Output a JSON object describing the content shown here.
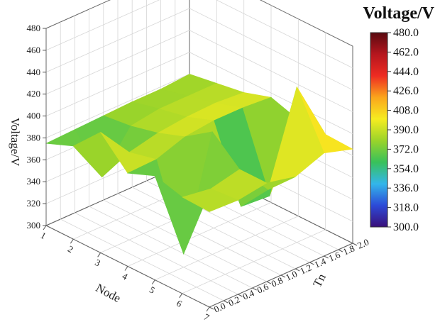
{
  "chart_data": {
    "type": "surface3d",
    "title": "",
    "colorbar_title": "Voltage/V",
    "z_axis_label": "Voltage/V",
    "x_axis_label": "Node",
    "y_axis_label": "Tn",
    "z_ticks": [
      "300",
      "320",
      "340",
      "360",
      "380",
      "400",
      "420",
      "440",
      "460",
      "480"
    ],
    "x_ticks": [
      "1",
      "2",
      "3",
      "4",
      "5",
      "6",
      "7"
    ],
    "y_ticks": [
      "0.0",
      "0.2",
      "0.4",
      "0.6",
      "0.8",
      "1.0",
      "1.2",
      "1.4",
      "1.6",
      "1.8",
      "2.0"
    ],
    "zlim": [
      300,
      480
    ],
    "xlim": [
      1,
      7
    ],
    "ylim": [
      0,
      2
    ],
    "colorbar_ticks": [
      "480.0",
      "462.0",
      "444.0",
      "426.0",
      "408.0",
      "390.0",
      "372.0",
      "354.0",
      "336.0",
      "318.0",
      "300.0"
    ],
    "colorscale": [
      "#3a0f7a",
      "#2c4ad8",
      "#33b6ea",
      "#38c15a",
      "#9ad42a",
      "#f6ec20",
      "#fba51c",
      "#ee2b22",
      "#b5161e",
      "#5a0a10"
    ],
    "grid": true,
    "y_values": [
      0.0,
      0.4,
      0.8,
      1.2,
      1.6,
      2.0
    ],
    "surface": [
      {
        "node": 1,
        "values": [
          375,
          376,
          377,
          378,
          378,
          380
        ]
      },
      {
        "node": 2,
        "values": [
          385,
          345,
          380,
          384,
          384,
          384
        ]
      },
      {
        "node": 3,
        "values": [
          410,
          380,
          386,
          389,
          390,
          388
        ]
      },
      {
        "node": 4,
        "values": [
          385,
          386,
          395,
          398,
          398,
          396
        ]
      },
      {
        "node": 5,
        "values": [
          395,
          312,
          412,
          332,
          330,
          388
        ]
      },
      {
        "node": 6,
        "values": [
          388,
          384,
          390,
          360,
          442,
          387
        ]
      },
      {
        "node": 7,
        "values": [
          387,
          386,
          390,
          384,
          394,
          386
        ]
      }
    ]
  }
}
